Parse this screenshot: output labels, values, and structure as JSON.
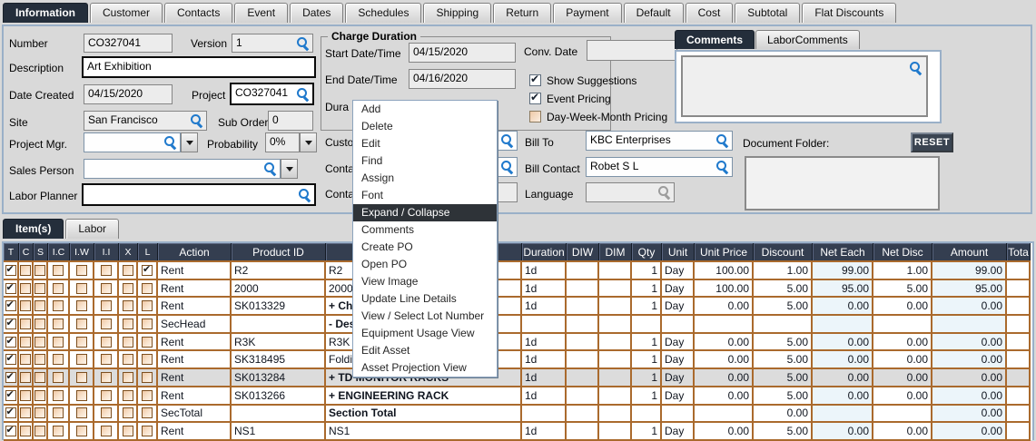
{
  "colors": {
    "tab_active": "#242e3b",
    "table_header": "#343e50",
    "grid_line": "#aa6a2d",
    "selected_row": "#dcdcdc",
    "tint_col": "#ecf5fa",
    "magnifier": "#1f79cc"
  },
  "top_tabs": [
    {
      "label": "Information",
      "active": true
    },
    {
      "label": "Customer",
      "active": false
    },
    {
      "label": "Contacts",
      "active": false
    },
    {
      "label": "Event",
      "active": false
    },
    {
      "label": "Dates",
      "active": false
    },
    {
      "label": "Schedules",
      "active": false
    },
    {
      "label": "Shipping",
      "active": false
    },
    {
      "label": "Return",
      "active": false
    },
    {
      "label": "Payment",
      "active": false
    },
    {
      "label": "Default",
      "active": false
    },
    {
      "label": "Cost",
      "active": false
    },
    {
      "label": "Subtotal",
      "active": false
    },
    {
      "label": "Flat Discounts",
      "active": false
    }
  ],
  "form": {
    "number": {
      "label": "Number",
      "value": "CO327041"
    },
    "version": {
      "label": "Version",
      "value": "1"
    },
    "description": {
      "label": "Description",
      "value": "Art Exhibition"
    },
    "date_created": {
      "label": "Date Created",
      "value": "04/15/2020"
    },
    "project": {
      "label": "Project",
      "value": "CO327041"
    },
    "site": {
      "label": "Site",
      "value": "San Francisco"
    },
    "sub_orders": {
      "label": "Sub Orders",
      "value": "0"
    },
    "project_mgr": {
      "label": "Project Mgr.",
      "value": ""
    },
    "probability": {
      "label": "Probability",
      "value": "0%"
    },
    "sales_person": {
      "label": "Sales Person",
      "value": ""
    },
    "labor_planner": {
      "label": "Labor Planner",
      "value": ""
    }
  },
  "charge_duration": {
    "title": "Charge Duration",
    "start": {
      "label": "Start Date/Time",
      "value": "04/15/2020"
    },
    "end": {
      "label": "End Date/Time",
      "value": "04/16/2020"
    },
    "duration_fragment": "Dura"
  },
  "middle": {
    "conv_date": {
      "label": "Conv. Date",
      "value": ""
    },
    "options": [
      {
        "label": "Show Suggestions",
        "checked": true
      },
      {
        "label": "Event Pricing",
        "checked": true
      },
      {
        "label": "Day-Week-Month Pricing",
        "checked": false
      }
    ],
    "partials": [
      "Custo",
      "Conta",
      "Conta"
    ],
    "bill_to": {
      "label": "Bill To",
      "value": "KBC Enterprises"
    },
    "bill_contact": {
      "label": "Bill Contact",
      "value": "Robet S L"
    },
    "language": {
      "label": "Language",
      "value": ""
    }
  },
  "comments": {
    "tabs": [
      {
        "label": "Comments",
        "active": true
      },
      {
        "label": "LaborComments",
        "active": false
      }
    ],
    "value": ""
  },
  "document_folder": {
    "label": "Document Folder:",
    "reset": "RESET",
    "value": ""
  },
  "context_menu": {
    "selected": "Expand / Collapse",
    "items": [
      "Add",
      "Delete",
      "Edit",
      "Find",
      "Assign",
      "Font",
      "Expand / Collapse",
      "Comments",
      "Create PO",
      "Open PO",
      "View Image",
      "Update Line Details",
      "View / Select Lot Number",
      "Equipment Usage View",
      "Edit Asset",
      "Asset Projection View"
    ]
  },
  "items_tabs": [
    {
      "label": "Item(s)",
      "active": true
    },
    {
      "label": "Labor",
      "active": false
    }
  ],
  "table": {
    "columns": [
      "T",
      "C",
      "S",
      "I.C",
      "I.W",
      "I.I",
      "X",
      "L",
      "Action",
      "Product ID",
      "",
      "Duration",
      "DIW",
      "DIM",
      "Qty",
      "Unit",
      "Unit Price",
      "Discount",
      "Net Each",
      "Net Disc",
      "Amount",
      "Tota"
    ],
    "rows": [
      {
        "t": true,
        "l": true,
        "action": "Rent",
        "product_id": "R2",
        "description": "R2",
        "bold": false,
        "duration": "1d",
        "qty": "1",
        "unit": "Day",
        "unit_price": "100.00",
        "discount": "1.00",
        "net_each": "99.00",
        "net_disc": "1.00",
        "amount": "99.00",
        "selected": false
      },
      {
        "t": true,
        "l": false,
        "action": "Rent",
        "product_id": "2000",
        "description": "2000",
        "bold": false,
        "duration": "1d",
        "qty": "1",
        "unit": "Day",
        "unit_price": "100.00",
        "discount": "5.00",
        "net_each": "95.00",
        "net_disc": "5.00",
        "amount": "95.00",
        "selected": false
      },
      {
        "t": true,
        "l": false,
        "action": "Rent",
        "product_id": "SK013329",
        "description": "+ Chyron",
        "bold": true,
        "duration": "1d",
        "qty": "1",
        "unit": "Day",
        "unit_price": "0.00",
        "discount": "5.00",
        "net_each": "0.00",
        "net_disc": "0.00",
        "amount": "0.00",
        "selected": false
      },
      {
        "t": true,
        "l": false,
        "action": "SecHead",
        "product_id": "",
        "description": "- Desc Au",
        "bold": true,
        "duration": "",
        "qty": "",
        "unit": "",
        "unit_price": "",
        "discount": "",
        "net_each": "",
        "net_disc": "",
        "amount": "",
        "selected": false
      },
      {
        "t": true,
        "l": false,
        "action": "Rent",
        "product_id": "R3K",
        "description": "R3K",
        "bold": false,
        "duration": "1d",
        "qty": "1",
        "unit": "Day",
        "unit_price": "0.00",
        "discount": "5.00",
        "net_each": "0.00",
        "net_disc": "0.00",
        "amount": "0.00",
        "selected": false
      },
      {
        "t": true,
        "l": false,
        "action": "Rent",
        "product_id": "SK318495",
        "description": "Folding C",
        "bold": false,
        "duration": "1d",
        "qty": "1",
        "unit": "Day",
        "unit_price": "0.00",
        "discount": "5.00",
        "net_each": "0.00",
        "net_disc": "0.00",
        "amount": "0.00",
        "selected": false
      },
      {
        "t": true,
        "l": false,
        "action": "Rent",
        "product_id": "SK013284",
        "description": "+ TD MONITOR RACKS",
        "bold": true,
        "duration": "1d",
        "qty": "1",
        "unit": "Day",
        "unit_price": "0.00",
        "discount": "5.00",
        "net_each": "0.00",
        "net_disc": "0.00",
        "amount": "0.00",
        "selected": true
      },
      {
        "t": true,
        "l": false,
        "action": "Rent",
        "product_id": "SK013266",
        "description": "+ ENGINEERING RACK",
        "bold": true,
        "duration": "1d",
        "qty": "1",
        "unit": "Day",
        "unit_price": "0.00",
        "discount": "5.00",
        "net_each": "0.00",
        "net_disc": "0.00",
        "amount": "0.00",
        "selected": false
      },
      {
        "t": true,
        "l": false,
        "action": "SecTotal",
        "product_id": "",
        "description": "Section Total",
        "bold": true,
        "duration": "",
        "qty": "",
        "unit": "",
        "unit_price": "",
        "discount": "0.00",
        "net_each": "",
        "net_disc": "",
        "amount": "0.00",
        "selected": false
      },
      {
        "t": true,
        "l": false,
        "action": "Rent",
        "product_id": "NS1",
        "description": "NS1",
        "bold": false,
        "duration": "1d",
        "qty": "1",
        "unit": "Day",
        "unit_price": "0.00",
        "discount": "5.00",
        "net_each": "0.00",
        "net_disc": "0.00",
        "amount": "0.00",
        "selected": false
      }
    ]
  }
}
